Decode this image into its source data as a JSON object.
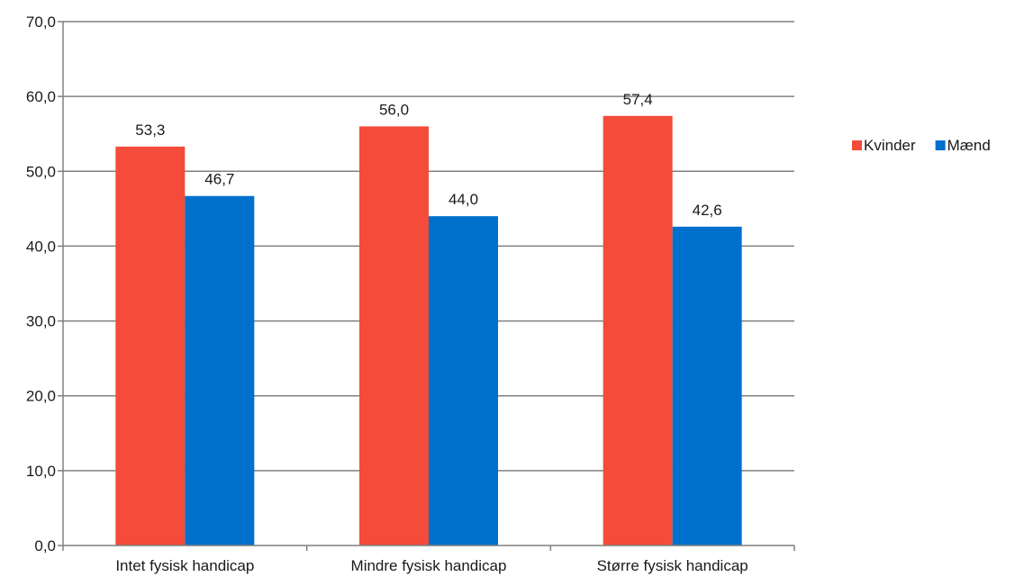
{
  "chart_data": {
    "type": "bar",
    "categories": [
      "Intet fysisk handicap",
      "Mindre fysisk handicap",
      "Større fysisk handicap"
    ],
    "series": [
      {
        "name": "Kvinder",
        "values": [
          53.3,
          56.0,
          57.4
        ],
        "labels": [
          "53,3",
          "56,0",
          "57,4"
        ],
        "color": "#f44b3a"
      },
      {
        "name": "Mænd",
        "values": [
          46.7,
          44.0,
          42.6
        ],
        "labels": [
          "46,7",
          "44,0",
          "42,6"
        ],
        "color": "#0070cd"
      }
    ],
    "ylim": [
      0,
      70
    ],
    "yticks": [
      0,
      10,
      20,
      30,
      40,
      50,
      60,
      70
    ],
    "ytick_labels": [
      "0,0",
      "10,0",
      "20,0",
      "30,0",
      "40,0",
      "50,0",
      "60,0",
      "70,0"
    ],
    "title": "",
    "xlabel": "",
    "ylabel": "",
    "grid": true,
    "legend_position": "right",
    "colors": {
      "grid": "#808080",
      "axis": "#808080",
      "text": "#1a1a1a"
    }
  }
}
